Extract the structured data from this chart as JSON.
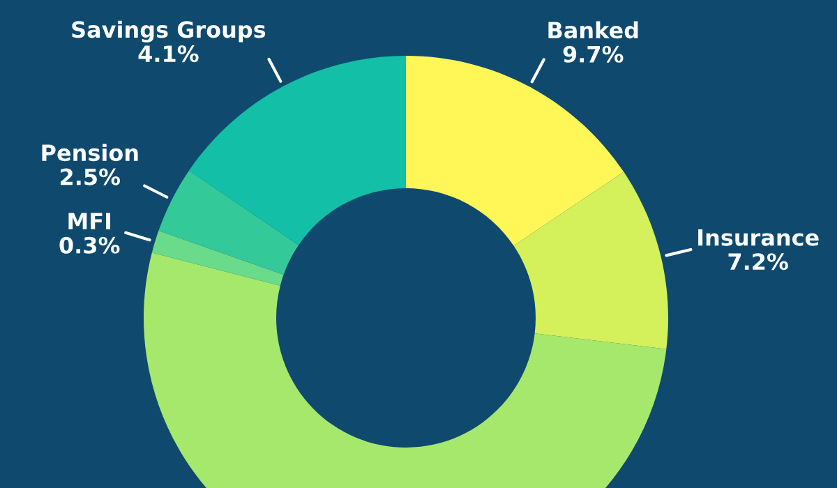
{
  "chart_data": {
    "type": "donut",
    "categories": [
      "Banked",
      "Insurance",
      null,
      "MFI",
      "Pension",
      "Savings Groups"
    ],
    "values": [
      15.6,
      11.3,
      52.1,
      1.4,
      4.1,
      15.5
    ],
    "colors": [
      "#fff757",
      "#d4f05a",
      "#a6e86c",
      "#6adb8a",
      "#34c998",
      "#13bfa6"
    ],
    "annotations": [
      "9.7%",
      "7.2%",
      "0.3%",
      "2.5%",
      "4.1%"
    ]
  }
}
